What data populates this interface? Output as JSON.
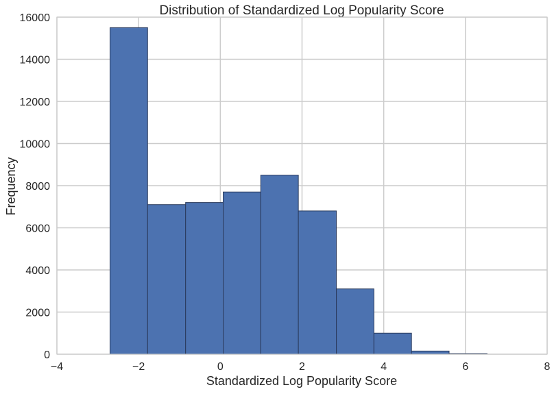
{
  "chart_data": {
    "type": "bar",
    "title": "Distribution of Standardized Log Popularity Score",
    "xlabel": "Standardized Log Popularity Score",
    "ylabel": "Frequency",
    "xlim": [
      -4,
      8
    ],
    "ylim": [
      0,
      16000
    ],
    "xticks": [
      -4,
      -2,
      0,
      2,
      4,
      6,
      8
    ],
    "xtick_labels": [
      "−4",
      "−2",
      "0",
      "2",
      "4",
      "6",
      "8"
    ],
    "yticks": [
      0,
      2000,
      4000,
      6000,
      8000,
      10000,
      12000,
      14000,
      16000
    ],
    "ytick_labels": [
      "0",
      "2000",
      "4000",
      "6000",
      "8000",
      "10000",
      "12000",
      "14000",
      "16000"
    ],
    "bins": [
      {
        "x0": -2.7,
        "x1": -1.78,
        "count": 15500
      },
      {
        "x0": -1.78,
        "x1": -0.85,
        "count": 7100
      },
      {
        "x0": -0.85,
        "x1": 0.07,
        "count": 7200
      },
      {
        "x0": 0.07,
        "x1": 0.99,
        "count": 7700
      },
      {
        "x0": 0.99,
        "x1": 1.91,
        "count": 8500
      },
      {
        "x0": 1.91,
        "x1": 2.84,
        "count": 6800
      },
      {
        "x0": 2.84,
        "x1": 3.76,
        "count": 3100
      },
      {
        "x0": 3.76,
        "x1": 4.68,
        "count": 1000
      },
      {
        "x0": 4.68,
        "x1": 5.6,
        "count": 150
      },
      {
        "x0": 5.6,
        "x1": 6.53,
        "count": 30
      }
    ],
    "grid": true,
    "bar_color": "#4c72b0",
    "edge_color": "#2a3a5c",
    "grid_color": "#cccccc"
  }
}
